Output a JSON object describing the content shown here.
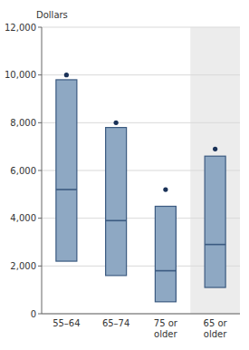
{
  "chart_data": {
    "type": "box",
    "ylabel": "Dollars",
    "categories": [
      "55–64",
      "65–74",
      "75 or\nolder",
      "65 or\nolder"
    ],
    "boxes": [
      {
        "q1": 2200,
        "median": 5200,
        "q3": 9800,
        "dot": 10000
      },
      {
        "q1": 1600,
        "median": 3900,
        "q3": 7800,
        "dot": 8000
      },
      {
        "q1": 500,
        "median": 1800,
        "q3": 4500,
        "dot": 5200
      },
      {
        "q1": 1100,
        "median": 2900,
        "q3": 6600,
        "dot": 6900
      }
    ],
    "color": "#8ea8c3",
    "ylim": [
      0,
      12000
    ],
    "yticks": [
      0,
      {
        "value": 2000,
        "label": "2,000"
      },
      {
        "value": 4000,
        "label": "4,000"
      },
      {
        "value": 6000,
        "label": "6,000"
      },
      {
        "value": 8000,
        "label": "8,000"
      },
      {
        "value": 10000,
        "label": "10,000"
      },
      {
        "value": 12000,
        "label": "12,000"
      }
    ],
    "grid": true
  }
}
